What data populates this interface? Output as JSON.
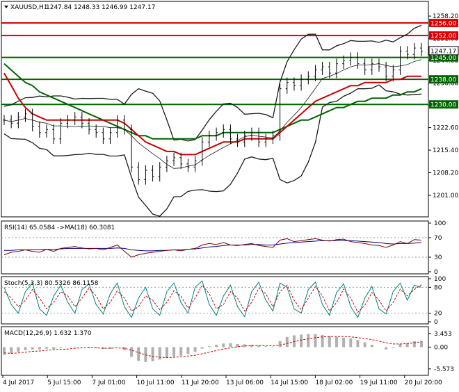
{
  "header": {
    "symbol": "XAUUSD,H1",
    "ohlc": "1247.84 1248.33 1246.99 1247.17"
  },
  "colors": {
    "price_bars": "#000000",
    "ma_red": "#cc0000",
    "ma_green": "#006400",
    "bollinger": "#1a1a1a",
    "level_red": "#dd0000",
    "level_green": "#006400",
    "rsi_line": "#7f0000",
    "rsi_ma": "#000080",
    "stoch_main": "#008080",
    "stoch_signal": "#cc0000",
    "macd_hist": "#b0b0b0",
    "macd_signal": "#cc0000"
  },
  "chart_data": [
    {
      "type": "line",
      "panel": "price",
      "title": "XAUUSD,H1",
      "ylim": [
        1195.0,
        1262.0
      ],
      "y_ticks": [
        "1258.20",
        "1251.00",
        "1244.00",
        "1236.80",
        "1229.60",
        "1222.60",
        "1215.40",
        "1208.20",
        "1201.00"
      ],
      "levels": [
        {
          "value": 1256.0,
          "label": "1256.00",
          "color": "#dd0000",
          "highlight": true
        },
        {
          "value": 1252.0,
          "label": "1252.00",
          "color": "#dd0000",
          "highlight": true
        },
        {
          "value": 1245.0,
          "label": "1245.00",
          "color": "#006400",
          "highlight": true
        },
        {
          "value": 1238.0,
          "label": "1238.00",
          "color": "#006400",
          "highlight": true
        },
        {
          "value": 1230.0,
          "label": "1230.00",
          "color": "#006400",
          "highlight": true
        }
      ],
      "current_price": "1247.17",
      "x_labels": [
        "4 Jul 2017",
        "5 Jul 15:00",
        "7 Jul 01:00",
        "10 Jul 11:00",
        "11 Jul 20:00",
        "13 Jul 06:00",
        "14 Jul 15:00",
        "18 Jul 02:00",
        "19 Jul 11:00",
        "20 Jul 20:00"
      ],
      "series": [
        {
          "kind": "close",
          "values": [
            1225,
            1224,
            1226,
            1227,
            1223,
            1221,
            1222,
            1219,
            1224,
            1225,
            1226,
            1224,
            1222,
            1221,
            1219,
            1221,
            1225,
            1222,
            1210,
            1206,
            1209,
            1207,
            1210,
            1212,
            1213,
            1211,
            1210,
            1212,
            1218,
            1220,
            1221,
            1222,
            1219,
            1218,
            1220,
            1221,
            1218,
            1219,
            1220,
            1235,
            1237,
            1236,
            1238,
            1239,
            1241,
            1242,
            1240,
            1243,
            1244,
            1245,
            1243,
            1241,
            1243,
            1242,
            1239,
            1241,
            1247,
            1246,
            1248,
            1247
          ]
        },
        {
          "kind": "ma_red",
          "values": [
            1240,
            1236,
            1232,
            1229,
            1227,
            1226,
            1225,
            1225,
            1225,
            1225,
            1225,
            1225,
            1225,
            1225,
            1225,
            1225,
            1225,
            1224,
            1222,
            1220,
            1218,
            1217,
            1216,
            1215,
            1215,
            1214,
            1214,
            1214,
            1215,
            1216,
            1217,
            1218,
            1218,
            1218,
            1219,
            1219,
            1219,
            1219,
            1219,
            1221,
            1223,
            1225,
            1227,
            1229,
            1231,
            1232,
            1233,
            1234,
            1235,
            1236,
            1236,
            1237,
            1237,
            1237,
            1237,
            1238,
            1238,
            1239,
            1239,
            1239
          ]
        },
        {
          "kind": "ma_green",
          "values": [
            1243,
            1241,
            1239,
            1237,
            1236,
            1234,
            1233,
            1232,
            1231,
            1230,
            1229,
            1228,
            1227,
            1226,
            1225,
            1224,
            1223,
            1222,
            1221,
            1220,
            1220,
            1219,
            1219,
            1219,
            1219,
            1219,
            1219,
            1219,
            1220,
            1220,
            1220,
            1221,
            1221,
            1221,
            1221,
            1221,
            1221,
            1221,
            1221,
            1222,
            1223,
            1224,
            1225,
            1225,
            1226,
            1227,
            1228,
            1229,
            1229,
            1230,
            1231,
            1231,
            1232,
            1232,
            1232,
            1233,
            1233,
            1234,
            1234,
            1235
          ]
        }
      ]
    },
    {
      "type": "line",
      "panel": "rsi",
      "title": "RSI(14) 65.0584 ->MA(18) 60.3081",
      "ylim": [
        0,
        100
      ],
      "y_ticks": [
        "100",
        "70",
        "30",
        "0"
      ],
      "series": [
        {
          "kind": "rsi",
          "values": [
            35,
            40,
            42,
            45,
            42,
            40,
            46,
            42,
            48,
            50,
            52,
            49,
            47,
            48,
            45,
            50,
            55,
            42,
            30,
            35,
            38,
            40,
            42,
            44,
            45,
            43,
            46,
            48,
            55,
            58,
            56,
            60,
            55,
            54,
            56,
            58,
            54,
            52,
            50,
            65,
            68,
            62,
            64,
            66,
            68,
            65,
            63,
            66,
            67,
            62,
            60,
            58,
            55,
            54,
            50,
            55,
            62,
            58,
            66,
            65
          ]
        },
        {
          "kind": "rsi_ma",
          "values": [
            44,
            44,
            45,
            45,
            45,
            45,
            46,
            46,
            47,
            48,
            48,
            48,
            48,
            48,
            48,
            48,
            49,
            48,
            45,
            44,
            43,
            43,
            44,
            44,
            45,
            45,
            46,
            47,
            49,
            51,
            52,
            54,
            55,
            55,
            55,
            56,
            56,
            55,
            55,
            57,
            59,
            60,
            61,
            62,
            63,
            64,
            64,
            64,
            64,
            64,
            63,
            62,
            61,
            60,
            58,
            57,
            58,
            58,
            59,
            60
          ]
        }
      ]
    },
    {
      "type": "line",
      "panel": "stoch",
      "title": "Stoch(5,3,3) 80.5326 86.1158",
      "ylim": [
        0,
        100
      ],
      "y_ticks": [
        "100",
        "80",
        "20",
        "0"
      ],
      "series": [
        {
          "kind": "stoch_main",
          "values": [
            80,
            40,
            20,
            70,
            90,
            30,
            15,
            60,
            85,
            45,
            20,
            75,
            88,
            40,
            18,
            65,
            90,
            35,
            10,
            55,
            80,
            30,
            15,
            70,
            90,
            45,
            20,
            80,
            95,
            40,
            15,
            60,
            85,
            35,
            12,
            70,
            92,
            50,
            25,
            90,
            80,
            30,
            20,
            75,
            92,
            40,
            15,
            68,
            88,
            35,
            10,
            55,
            82,
            30,
            18,
            70,
            90,
            50,
            85,
            80
          ]
        },
        {
          "kind": "stoch_signal",
          "values": [
            70,
            55,
            35,
            50,
            75,
            55,
            30,
            45,
            70,
            60,
            35,
            55,
            78,
            60,
            30,
            45,
            72,
            55,
            25,
            35,
            60,
            50,
            28,
            45,
            72,
            60,
            32,
            55,
            85,
            65,
            30,
            40,
            70,
            55,
            25,
            45,
            78,
            65,
            35,
            70,
            85,
            50,
            28,
            55,
            82,
            60,
            25,
            45,
            76,
            55,
            22,
            38,
            68,
            50,
            25,
            45,
            76,
            60,
            75,
            86
          ]
        }
      ]
    },
    {
      "type": "bar",
      "panel": "macd",
      "title": "MACD(12,26,9) 1.632 1.370",
      "ylim": [
        -6.5,
        4.5
      ],
      "y_ticks": [
        "3.453",
        "0.00",
        "-5.573"
      ],
      "series": [
        {
          "kind": "macd_hist",
          "values": [
            -2.0,
            -1.6,
            -1.2,
            -0.8,
            -0.6,
            -0.6,
            -0.4,
            -0.5,
            -0.2,
            0.0,
            0.1,
            0.0,
            -0.2,
            -0.3,
            -0.5,
            -0.4,
            0.0,
            -0.8,
            -2.5,
            -3.5,
            -3.8,
            -3.6,
            -3.2,
            -2.8,
            -2.4,
            -2.2,
            -1.8,
            -1.2,
            -0.4,
            0.2,
            0.6,
            0.9,
            1.0,
            0.8,
            0.7,
            0.6,
            0.4,
            0.2,
            0.1,
            1.5,
            2.6,
            3.0,
            3.2,
            3.3,
            3.3,
            3.1,
            2.8,
            2.6,
            2.4,
            2.2,
            1.8,
            1.2,
            0.6,
            0.0,
            -0.6,
            -0.2,
            0.8,
            1.0,
            1.5,
            1.6
          ]
        },
        {
          "kind": "macd_signal",
          "values": [
            -1.5,
            -1.6,
            -1.5,
            -1.3,
            -1.1,
            -1.0,
            -0.8,
            -0.7,
            -0.6,
            -0.5,
            -0.3,
            -0.2,
            -0.2,
            -0.2,
            -0.3,
            -0.3,
            -0.2,
            -0.3,
            -0.8,
            -1.4,
            -2.0,
            -2.4,
            -2.6,
            -2.7,
            -2.6,
            -2.5,
            -2.3,
            -2.1,
            -1.7,
            -1.3,
            -0.9,
            -0.5,
            -0.2,
            0.1,
            0.3,
            0.4,
            0.4,
            0.4,
            0.3,
            0.5,
            0.9,
            1.4,
            1.8,
            2.1,
            2.4,
            2.6,
            2.7,
            2.7,
            2.7,
            2.6,
            2.4,
            2.2,
            1.9,
            1.5,
            1.1,
            0.8,
            0.8,
            0.9,
            1.1,
            1.37
          ]
        }
      ]
    }
  ]
}
